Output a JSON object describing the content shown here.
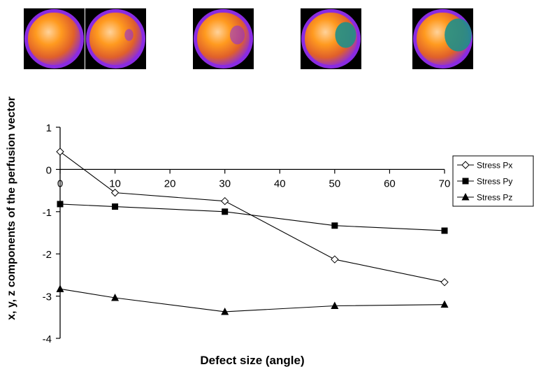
{
  "colors": {
    "line": "#000000",
    "marker_px": "#ffffff",
    "marker_py": "#000000",
    "marker_pz": "#000000",
    "thumb_bg": "#000000",
    "thumb_orange": "#ff9a1f",
    "thumb_purple": "#8a2be2",
    "thumb_teal": "#1f8f8a"
  },
  "thumbnails": [
    {
      "defect_angle": 0
    },
    {
      "defect_angle": 10
    },
    {
      "defect_angle": 30
    },
    {
      "defect_angle": 50
    },
    {
      "defect_angle": 70
    }
  ],
  "chart_data": {
    "type": "line",
    "title": "",
    "xlabel": "Defect size (angle)",
    "ylabel": "x, y, z components of the perfusion vector",
    "x": [
      0,
      10,
      30,
      50,
      70
    ],
    "xlim": [
      0,
      70
    ],
    "xticks": [
      "0",
      "10",
      "20",
      "30",
      "40",
      "50",
      "60",
      "70"
    ],
    "ylim": [
      -4,
      1
    ],
    "yticks": [
      "1",
      "0",
      "-1",
      "-2",
      "-3",
      "-4"
    ],
    "grid": false,
    "legend_position": "right",
    "series": [
      {
        "name": "Stress Px",
        "marker": "diamond-open",
        "values": [
          0.42,
          -0.55,
          -0.75,
          -2.13,
          -2.67
        ]
      },
      {
        "name": "Stress Py",
        "marker": "square-filled",
        "values": [
          -0.82,
          -0.88,
          -1.0,
          -1.33,
          -1.45
        ]
      },
      {
        "name": "Stress Pz",
        "marker": "triangle-filled",
        "values": [
          -2.83,
          -3.04,
          -3.37,
          -3.23,
          -3.2
        ]
      }
    ]
  }
}
